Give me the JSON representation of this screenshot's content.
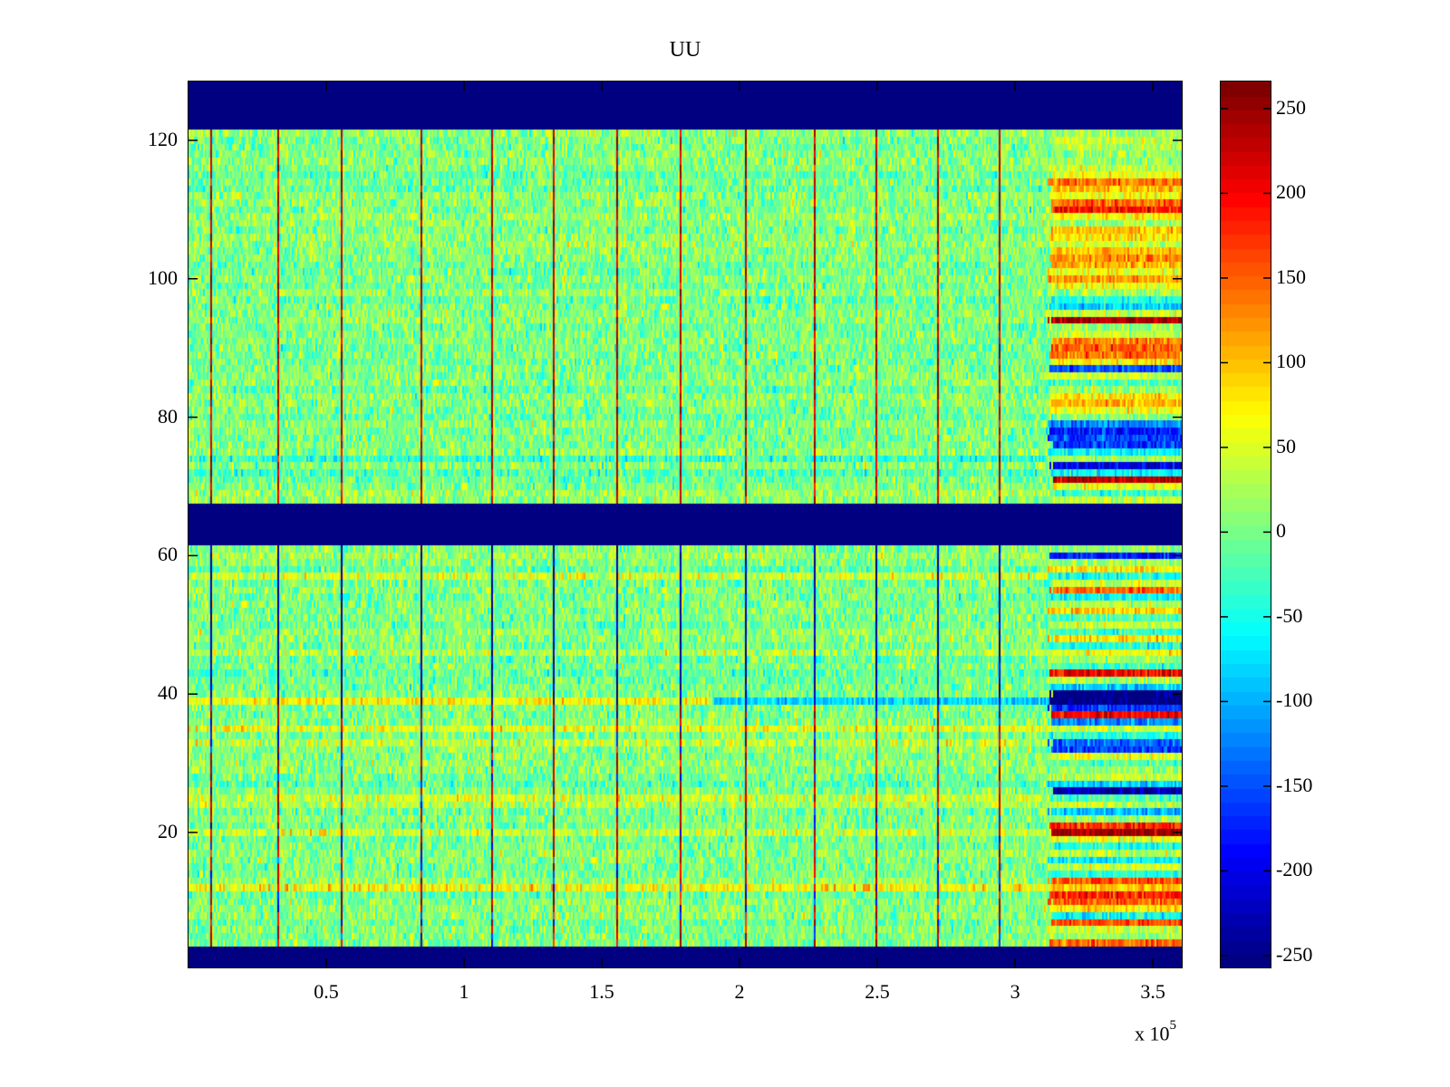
{
  "chart_data": {
    "type": "heatmap",
    "title": "UU",
    "xlabel": "",
    "ylabel": "",
    "x_multiplier_label": "x 10",
    "x_multiplier_exponent": "5",
    "xlim": [
      0,
      3.605
    ],
    "ylim": [
      0.5,
      128.5
    ],
    "x_ticks": [
      0.5,
      1,
      1.5,
      2,
      2.5,
      3,
      3.5
    ],
    "x_tick_labels": [
      "0.5",
      "1",
      "1.5",
      "2",
      "2.5",
      "3",
      "3.5"
    ],
    "y_ticks": [
      20,
      40,
      60,
      80,
      100,
      120
    ],
    "y_tick_labels": [
      "20",
      "40",
      "60",
      "80",
      "100",
      "120"
    ],
    "colormap": "jet",
    "colormap_levels": 64,
    "clim": [
      -257,
      266
    ],
    "colorbar_ticks": [
      250,
      200,
      150,
      100,
      50,
      0,
      -50,
      -100,
      -150,
      -200,
      -250
    ],
    "colorbar_tick_labels": [
      "250",
      "200",
      "150",
      "100",
      "50",
      "0",
      "-50",
      "-100",
      "-150",
      "-200",
      "-250"
    ],
    "empty_row_bands": [
      [
        1,
        3
      ],
      [
        62,
        67
      ],
      [
        122,
        128
      ]
    ],
    "empty_value": -257,
    "background_noise_mean": 5,
    "background_noise_spread": 55,
    "transition_x": 3.12,
    "spike_columns_x": [
      0.08,
      0.32,
      0.55,
      0.84,
      1.1,
      1.32,
      1.55,
      1.78,
      2.02,
      2.27,
      2.49,
      2.72,
      2.94
    ],
    "spike_value_upper_panel": 230,
    "spike_value_lower_panel_top": -240,
    "spike_value_lower_panel_bottom": 230,
    "spike_lower_split_row": 38,
    "row_39_feature": {
      "row": 39,
      "value_before": 70,
      "value_after": -80,
      "switch_x": 1.9
    },
    "right_section_rows": {
      "4": 140,
      "5": 20,
      "6": 40,
      "7": 160,
      "8": -60,
      "9": 80,
      "10": 150,
      "11": 180,
      "12": 100,
      "13": 160,
      "14": -40,
      "15": 40,
      "16": -60,
      "17": 30,
      "18": -40,
      "19": 60,
      "20": 250,
      "21": 180,
      "22": 20,
      "23": -90,
      "24": 40,
      "25": -20,
      "26": -230,
      "27": -80,
      "28": 40,
      "29": 20,
      "30": -20,
      "31": 60,
      "32": -160,
      "33": -140,
      "34": -40,
      "35": 40,
      "36": -120,
      "37": 200,
      "38": -160,
      "39": -257,
      "40": -257,
      "41": -80,
      "42": 30,
      "43": 200,
      "44": -30,
      "45": 20,
      "46": 60,
      "47": -40,
      "48": 80,
      "49": -30,
      "50": 40,
      "51": -20,
      "52": 90,
      "53": 30,
      "54": -60,
      "55": 150,
      "56": 40,
      "57": -40,
      "58": 80,
      "59": 20,
      "60": -180,
      "61": 10,
      "68": 40,
      "69": -30,
      "70": 60,
      "71": 230,
      "72": -60,
      "73": -200,
      "74": 20,
      "75": -60,
      "76": -160,
      "77": -150,
      "78": -170,
      "79": -120,
      "80": 10,
      "81": 60,
      "82": 100,
      "83": 80,
      "84": 20,
      "85": -20,
      "86": 40,
      "87": -150,
      "88": 80,
      "89": 140,
      "90": 150,
      "91": 130,
      "92": 40,
      "93": 20,
      "94": 240,
      "95": 40,
      "96": -80,
      "97": -50,
      "98": 20,
      "99": 60,
      "100": 120,
      "101": 60,
      "102": 110,
      "103": 130,
      "104": 100,
      "105": 40,
      "106": 80,
      "107": 100,
      "108": 20,
      "109": 70,
      "110": 190,
      "111": 150,
      "112": 60,
      "113": 100,
      "114": 140,
      "115": 60,
      "116": 40,
      "117": 20,
      "118": 10,
      "119": 30,
      "120": 40,
      "121": 20
    },
    "left_section_rows": {
      "12": 55,
      "13": 20,
      "20": 40,
      "24": 35,
      "25": 30,
      "33": 25,
      "35": 40,
      "46": 30,
      "57": 35,
      "74": -40
    }
  }
}
